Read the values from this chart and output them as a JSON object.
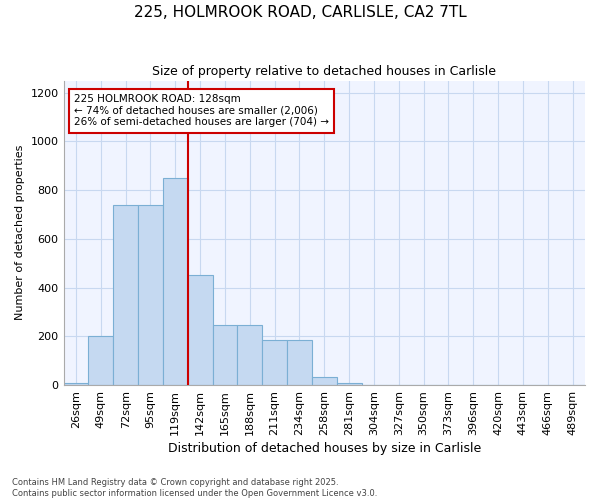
{
  "title1": "225, HOLMROOK ROAD, CARLISLE, CA2 7TL",
  "title2": "Size of property relative to detached houses in Carlisle",
  "xlabel": "Distribution of detached houses by size in Carlisle",
  "ylabel": "Number of detached properties",
  "categories": [
    "26sqm",
    "49sqm",
    "72sqm",
    "95sqm",
    "119sqm",
    "142sqm",
    "165sqm",
    "188sqm",
    "211sqm",
    "234sqm",
    "258sqm",
    "281sqm",
    "304sqm",
    "327sqm",
    "350sqm",
    "373sqm",
    "396sqm",
    "420sqm",
    "443sqm",
    "466sqm",
    "489sqm"
  ],
  "values": [
    10,
    200,
    740,
    740,
    850,
    450,
    245,
    245,
    185,
    185,
    35,
    10,
    0,
    0,
    0,
    0,
    0,
    0,
    0,
    0,
    0
  ],
  "bar_color": "#c5d9f1",
  "bar_edge_color": "#7bafd4",
  "background_color": "#ffffff",
  "plot_bg_color": "#f0f4ff",
  "grid_color": "#c8d8f0",
  "property_line_x": 4.5,
  "property_label": "225 HOLMROOK ROAD: 128sqm",
  "annotation_line1": "← 74% of detached houses are smaller (2,006)",
  "annotation_line2": "26% of semi-detached houses are larger (704) →",
  "annotation_box_color": "#ffffff",
  "annotation_box_edge": "#cc0000",
  "vline_color": "#cc0000",
  "ylim": [
    0,
    1250
  ],
  "yticks": [
    0,
    200,
    400,
    600,
    800,
    1000,
    1200
  ],
  "title1_fontsize": 11,
  "title2_fontsize": 9,
  "xlabel_fontsize": 9,
  "ylabel_fontsize": 8,
  "tick_fontsize": 8,
  "footer1": "Contains HM Land Registry data © Crown copyright and database right 2025.",
  "footer2": "Contains public sector information licensed under the Open Government Licence v3.0."
}
